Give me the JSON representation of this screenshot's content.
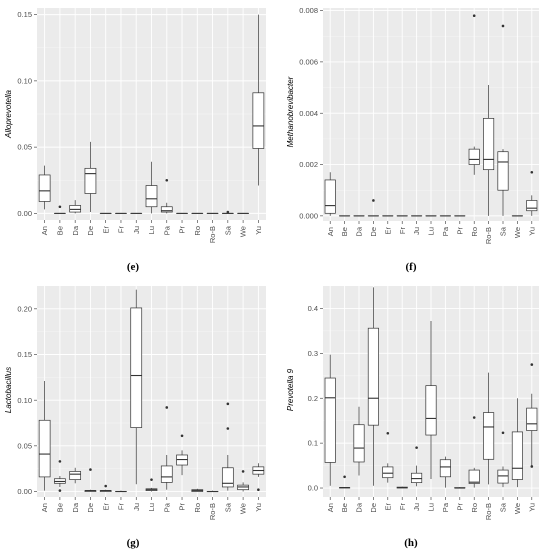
{
  "chart_data": [
    {
      "type": "box",
      "panel": "(e)",
      "ylabel": "Alloprevotella",
      "ylim": [
        -0.005,
        0.155
      ],
      "yticks": [
        0.0,
        0.05,
        0.1,
        0.15
      ],
      "ytick_labels": [
        "0.00",
        "0.05",
        "0.10",
        "0.15"
      ],
      "categories": [
        "An",
        "Be",
        "Da",
        "De",
        "Er",
        "Fr",
        "Ju",
        "Lu",
        "Pa",
        "Pr",
        "Ro",
        "Ro-B",
        "Sa",
        "We",
        "Yu"
      ],
      "boxes": [
        {
          "category": "An",
          "min": 0.003,
          "q1": 0.009,
          "median": 0.017,
          "q3": 0.029,
          "max": 0.036,
          "outliers": []
        },
        {
          "category": "Be",
          "min": 0.0,
          "q1": 0.0,
          "median": 0.0,
          "q3": 0.0,
          "max": 0.0,
          "outliers": [
            0.005
          ]
        },
        {
          "category": "Da",
          "min": 0.0,
          "q1": 0.001,
          "median": 0.003,
          "q3": 0.006,
          "max": 0.01,
          "outliers": []
        },
        {
          "category": "De",
          "min": 0.001,
          "q1": 0.015,
          "median": 0.03,
          "q3": 0.034,
          "max": 0.054,
          "outliers": []
        },
        {
          "category": "Er",
          "min": 0.0,
          "q1": 0.0,
          "median": 0.0,
          "q3": 0.0,
          "max": 0.0,
          "outliers": []
        },
        {
          "category": "Fr",
          "min": 0.0,
          "q1": 0.0,
          "median": 0.0,
          "q3": 0.0,
          "max": 0.0,
          "outliers": []
        },
        {
          "category": "Ju",
          "min": 0.0,
          "q1": 0.0,
          "median": 0.0,
          "q3": 0.0,
          "max": 0.0,
          "outliers": []
        },
        {
          "category": "Lu",
          "min": 0.0,
          "q1": 0.005,
          "median": 0.011,
          "q3": 0.021,
          "max": 0.039,
          "outliers": []
        },
        {
          "category": "Pa",
          "min": 0.0,
          "q1": 0.001,
          "median": 0.002,
          "q3": 0.005,
          "max": 0.008,
          "outliers": [
            0.025
          ]
        },
        {
          "category": "Pr",
          "min": 0.0,
          "q1": 0.0,
          "median": 0.0,
          "q3": 0.0,
          "max": 0.0,
          "outliers": []
        },
        {
          "category": "Ro",
          "min": 0.0,
          "q1": 0.0,
          "median": 0.0,
          "q3": 0.0,
          "max": 0.0,
          "outliers": []
        },
        {
          "category": "Ro-B",
          "min": 0.0,
          "q1": 0.0,
          "median": 0.0,
          "q3": 0.0,
          "max": 0.0,
          "outliers": []
        },
        {
          "category": "Sa",
          "min": 0.0,
          "q1": 0.0,
          "median": 0.0,
          "q3": 0.0,
          "max": 0.0,
          "outliers": [
            0.001
          ]
        },
        {
          "category": "We",
          "min": 0.0,
          "q1": 0.0,
          "median": 0.0,
          "q3": 0.0,
          "max": 0.0,
          "outliers": []
        },
        {
          "category": "Yu",
          "min": 0.021,
          "q1": 0.049,
          "median": 0.066,
          "q3": 0.091,
          "max": 0.15,
          "outliers": []
        }
      ]
    },
    {
      "type": "box",
      "panel": "(f)",
      "ylabel": "Methanobrevibacter",
      "ylim": [
        -0.0002,
        0.0081
      ],
      "yticks": [
        0.0,
        0.002,
        0.004,
        0.006,
        0.008
      ],
      "ytick_labels": [
        "0.000",
        "0.002",
        "0.004",
        "0.006",
        "0.008"
      ],
      "categories": [
        "An",
        "Be",
        "Da",
        "De",
        "Er",
        "Fr",
        "Ju",
        "Lu",
        "Pa",
        "Pr",
        "Ro",
        "Ro-B",
        "Sa",
        "We",
        "Yu"
      ],
      "boxes": [
        {
          "category": "An",
          "min": 0.0,
          "q1": 0.0001,
          "median": 0.0004,
          "q3": 0.0014,
          "max": 0.0017,
          "outliers": []
        },
        {
          "category": "Be",
          "min": 0.0,
          "q1": 0.0,
          "median": 0.0,
          "q3": 0.0,
          "max": 0.0,
          "outliers": []
        },
        {
          "category": "Da",
          "min": 0.0,
          "q1": 0.0,
          "median": 0.0,
          "q3": 0.0,
          "max": 0.0,
          "outliers": []
        },
        {
          "category": "De",
          "min": 0.0,
          "q1": 0.0,
          "median": 0.0,
          "q3": 0.0,
          "max": 0.0,
          "outliers": [
            0.0006
          ]
        },
        {
          "category": "Er",
          "min": 0.0,
          "q1": 0.0,
          "median": 0.0,
          "q3": 0.0,
          "max": 0.0,
          "outliers": []
        },
        {
          "category": "Fr",
          "min": 0.0,
          "q1": 0.0,
          "median": 0.0,
          "q3": 0.0,
          "max": 0.0,
          "outliers": []
        },
        {
          "category": "Ju",
          "min": 0.0,
          "q1": 0.0,
          "median": 0.0,
          "q3": 0.0,
          "max": 0.0,
          "outliers": []
        },
        {
          "category": "Lu",
          "min": 0.0,
          "q1": 0.0,
          "median": 0.0,
          "q3": 0.0,
          "max": 0.0,
          "outliers": []
        },
        {
          "category": "Pa",
          "min": 0.0,
          "q1": 0.0,
          "median": 0.0,
          "q3": 0.0,
          "max": 0.0,
          "outliers": []
        },
        {
          "category": "Pr",
          "min": 0.0,
          "q1": 0.0,
          "median": 0.0,
          "q3": 0.0,
          "max": 0.0,
          "outliers": []
        },
        {
          "category": "Ro",
          "min": 0.0016,
          "q1": 0.002,
          "median": 0.0022,
          "q3": 0.0026,
          "max": 0.0027,
          "outliers": [
            0.0078
          ]
        },
        {
          "category": "Ro-B",
          "min": 0.0,
          "q1": 0.0018,
          "median": 0.0022,
          "q3": 0.0038,
          "max": 0.0051,
          "outliers": []
        },
        {
          "category": "Sa",
          "min": 0.0,
          "q1": 0.001,
          "median": 0.0021,
          "q3": 0.0025,
          "max": 0.0026,
          "outliers": [
            0.0074
          ]
        },
        {
          "category": "We",
          "min": 0.0,
          "q1": 0.0,
          "median": 0.0,
          "q3": 0.0,
          "max": 0.0,
          "outliers": []
        },
        {
          "category": "Yu",
          "min": 0.0,
          "q1": 0.0002,
          "median": 0.0003,
          "q3": 0.0006,
          "max": 0.0008,
          "outliers": [
            0.0017
          ]
        }
      ]
    },
    {
      "type": "box",
      "panel": "(g)",
      "ylabel": "Lactobacillus",
      "ylim": [
        -0.006,
        0.225
      ],
      "yticks": [
        0.0,
        0.05,
        0.1,
        0.15,
        0.2
      ],
      "ytick_labels": [
        "0.00",
        "0.05",
        "0.10",
        "0.15",
        "0.20"
      ],
      "categories": [
        "An",
        "Be",
        "Da",
        "De",
        "Er",
        "Fr",
        "Ju",
        "Lu",
        "Pa",
        "Pr",
        "Ro",
        "Ro-B",
        "Sa",
        "We",
        "Yu"
      ],
      "boxes": [
        {
          "category": "An",
          "min": 0.001,
          "q1": 0.016,
          "median": 0.041,
          "q3": 0.078,
          "max": 0.121,
          "outliers": []
        },
        {
          "category": "Be",
          "min": 0.005,
          "q1": 0.009,
          "median": 0.011,
          "q3": 0.014,
          "max": 0.017,
          "outliers": [
            0.033,
            0.001
          ]
        },
        {
          "category": "Da",
          "min": 0.009,
          "q1": 0.013,
          "median": 0.019,
          "q3": 0.022,
          "max": 0.026,
          "outliers": []
        },
        {
          "category": "De",
          "min": 0.0,
          "q1": 0.0,
          "median": 0.001,
          "q3": 0.001,
          "max": 0.002,
          "outliers": [
            0.024
          ]
        },
        {
          "category": "Er",
          "min": 0.0,
          "q1": 0.0,
          "median": 0.001,
          "q3": 0.001,
          "max": 0.002,
          "outliers": [
            0.006
          ]
        },
        {
          "category": "Fr",
          "min": 0.0,
          "q1": 0.0,
          "median": 0.0,
          "q3": 0.0,
          "max": 0.001,
          "outliers": []
        },
        {
          "category": "Ju",
          "min": 0.008,
          "q1": 0.07,
          "median": 0.127,
          "q3": 0.201,
          "max": 0.221,
          "outliers": []
        },
        {
          "category": "Lu",
          "min": 0.0,
          "q1": 0.001,
          "median": 0.002,
          "q3": 0.003,
          "max": 0.004,
          "outliers": [
            0.013
          ]
        },
        {
          "category": "Pa",
          "min": 0.002,
          "q1": 0.01,
          "median": 0.016,
          "q3": 0.028,
          "max": 0.04,
          "outliers": [
            0.092
          ]
        },
        {
          "category": "Pr",
          "min": 0.018,
          "q1": 0.029,
          "median": 0.035,
          "q3": 0.04,
          "max": 0.045,
          "outliers": [
            0.061
          ]
        },
        {
          "category": "Ro",
          "min": 0.0,
          "q1": 0.0,
          "median": 0.001,
          "q3": 0.002,
          "max": 0.003,
          "outliers": []
        },
        {
          "category": "Ro-B",
          "min": 0.0,
          "q1": 0.0,
          "median": 0.0,
          "q3": 0.0,
          "max": 0.001,
          "outliers": []
        },
        {
          "category": "Sa",
          "min": 0.001,
          "q1": 0.005,
          "median": 0.009,
          "q3": 0.026,
          "max": 0.04,
          "outliers": [
            0.096,
            0.069
          ]
        },
        {
          "category": "We",
          "min": 0.0,
          "q1": 0.002,
          "median": 0.005,
          "q3": 0.007,
          "max": 0.01,
          "outliers": [
            0.022
          ]
        },
        {
          "category": "Yu",
          "min": 0.016,
          "q1": 0.019,
          "median": 0.023,
          "q3": 0.027,
          "max": 0.031,
          "outliers": [
            0.002
          ]
        }
      ]
    },
    {
      "type": "box",
      "panel": "(h)",
      "ylabel": "Prevotella 9",
      "ylim": [
        -0.02,
        0.45
      ],
      "yticks": [
        0.0,
        0.1,
        0.2,
        0.3,
        0.4
      ],
      "ytick_labels": [
        "0.0",
        "0.1",
        "0.2",
        "0.3",
        "0.4"
      ],
      "categories": [
        "An",
        "Be",
        "Da",
        "De",
        "Er",
        "Fr",
        "Ju",
        "Lu",
        "Pa",
        "Pr",
        "Ro",
        "Ro-B",
        "Sa",
        "We",
        "Yu"
      ],
      "boxes": [
        {
          "category": "An",
          "min": 0.005,
          "q1": 0.057,
          "median": 0.201,
          "q3": 0.245,
          "max": 0.297,
          "outliers": []
        },
        {
          "category": "Be",
          "min": 0.0,
          "q1": 0.0,
          "median": 0.001,
          "q3": 0.001,
          "max": 0.002,
          "outliers": [
            0.025
          ]
        },
        {
          "category": "Da",
          "min": 0.028,
          "q1": 0.058,
          "median": 0.089,
          "q3": 0.141,
          "max": 0.181,
          "outliers": []
        },
        {
          "category": "De",
          "min": 0.005,
          "q1": 0.14,
          "median": 0.2,
          "q3": 0.356,
          "max": 0.447,
          "outliers": []
        },
        {
          "category": "Er",
          "min": 0.012,
          "q1": 0.023,
          "median": 0.033,
          "q3": 0.047,
          "max": 0.055,
          "outliers": [
            0.122
          ]
        },
        {
          "category": "Fr",
          "min": 0.0,
          "q1": 0.0,
          "median": 0.001,
          "q3": 0.002,
          "max": 0.003,
          "outliers": []
        },
        {
          "category": "Ju",
          "min": 0.004,
          "q1": 0.012,
          "median": 0.021,
          "q3": 0.033,
          "max": 0.05,
          "outliers": [
            0.09
          ]
        },
        {
          "category": "Lu",
          "min": 0.02,
          "q1": 0.118,
          "median": 0.155,
          "q3": 0.228,
          "max": 0.372,
          "outliers": []
        },
        {
          "category": "Pa",
          "min": 0.001,
          "q1": 0.025,
          "median": 0.047,
          "q3": 0.063,
          "max": 0.07,
          "outliers": []
        },
        {
          "category": "Pr",
          "min": 0.0,
          "q1": 0.0,
          "median": 0.0,
          "q3": 0.001,
          "max": 0.002,
          "outliers": []
        },
        {
          "category": "Ro",
          "min": 0.001,
          "q1": 0.01,
          "median": 0.013,
          "q3": 0.04,
          "max": 0.045,
          "outliers": [
            0.157
          ]
        },
        {
          "category": "Ro-B",
          "min": 0.008,
          "q1": 0.064,
          "median": 0.136,
          "q3": 0.168,
          "max": 0.257,
          "outliers": []
        },
        {
          "category": "Sa",
          "min": 0.002,
          "q1": 0.011,
          "median": 0.027,
          "q3": 0.04,
          "max": 0.048,
          "outliers": [
            0.123
          ]
        },
        {
          "category": "We",
          "min": 0.002,
          "q1": 0.019,
          "median": 0.044,
          "q3": 0.125,
          "max": 0.2,
          "outliers": []
        },
        {
          "category": "Yu",
          "min": 0.05,
          "q1": 0.128,
          "median": 0.143,
          "q3": 0.178,
          "max": 0.21,
          "outliers": [
            0.275,
            0.048
          ]
        }
      ]
    }
  ]
}
